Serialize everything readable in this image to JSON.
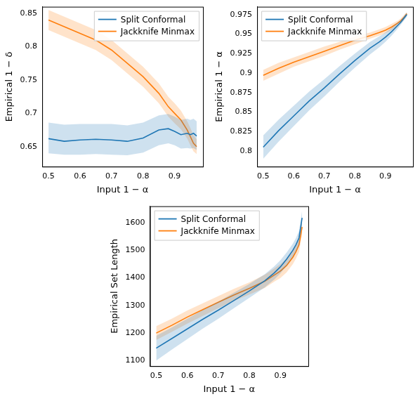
{
  "chart_data": [
    {
      "type": "line",
      "x_label": "Input 1 − α",
      "y_label": "Empirical 1 − δ",
      "x": [
        0.5,
        0.55,
        0.6,
        0.65,
        0.7,
        0.75,
        0.8,
        0.85,
        0.88,
        0.9,
        0.92,
        0.94,
        0.95,
        0.96,
        0.97
      ],
      "xlim": [
        0.48,
        0.99
      ],
      "xticks": [
        0.5,
        0.6,
        0.7,
        0.8,
        0.9
      ],
      "ylim": [
        0.62,
        0.86
      ],
      "yticks": [
        0.65,
        0.7,
        0.75,
        0.8,
        0.85
      ],
      "grid": false,
      "legend": "upper right",
      "series": [
        {
          "name": "Split Conformal",
          "color": "#1f77b4",
          "values": [
            0.662,
            0.658,
            0.66,
            0.661,
            0.66,
            0.658,
            0.663,
            0.675,
            0.677,
            0.673,
            0.668,
            0.67,
            0.668,
            0.67,
            0.666
          ],
          "lower": [
            0.64,
            0.638,
            0.638,
            0.639,
            0.638,
            0.637,
            0.641,
            0.652,
            0.655,
            0.652,
            0.647,
            0.648,
            0.647,
            0.648,
            0.645
          ],
          "upper": [
            0.686,
            0.683,
            0.684,
            0.684,
            0.684,
            0.682,
            0.686,
            0.697,
            0.699,
            0.695,
            0.69,
            0.692,
            0.69,
            0.692,
            0.688
          ]
        },
        {
          "name": "Jackknife Minmax",
          "color": "#ff7f0e",
          "values": [
            0.84,
            0.83,
            0.82,
            0.81,
            0.795,
            0.775,
            0.755,
            0.73,
            0.71,
            0.7,
            0.69,
            0.675,
            0.665,
            0.655,
            0.65
          ],
          "lower": [
            0.825,
            0.815,
            0.805,
            0.795,
            0.78,
            0.76,
            0.74,
            0.715,
            0.695,
            0.685,
            0.676,
            0.662,
            0.652,
            0.643,
            0.639
          ],
          "upper": [
            0.855,
            0.845,
            0.835,
            0.825,
            0.81,
            0.79,
            0.77,
            0.745,
            0.725,
            0.715,
            0.704,
            0.688,
            0.678,
            0.667,
            0.661
          ]
        }
      ]
    },
    {
      "type": "line",
      "x_label": "Input 1 − α",
      "y_label": "Empirical 1 − α",
      "x": [
        0.5,
        0.55,
        0.6,
        0.65,
        0.7,
        0.75,
        0.8,
        0.85,
        0.88,
        0.9,
        0.92,
        0.94,
        0.95,
        0.96,
        0.97
      ],
      "xlim": [
        0.48,
        0.99
      ],
      "xticks": [
        0.5,
        0.6,
        0.7,
        0.8,
        0.9
      ],
      "ylim": [
        0.78,
        0.985
      ],
      "yticks": [
        0.8,
        0.825,
        0.85,
        0.875,
        0.9,
        0.925,
        0.95,
        0.975
      ],
      "grid": false,
      "legend": "upper left",
      "series": [
        {
          "name": "Split Conformal",
          "color": "#1f77b4",
          "values": [
            0.805,
            0.826,
            0.845,
            0.864,
            0.881,
            0.899,
            0.916,
            0.932,
            0.94,
            0.946,
            0.953,
            0.961,
            0.965,
            0.97,
            0.975
          ],
          "lower": [
            0.79,
            0.812,
            0.832,
            0.852,
            0.87,
            0.889,
            0.907,
            0.924,
            0.933,
            0.94,
            0.948,
            0.957,
            0.962,
            0.967,
            0.972
          ],
          "upper": [
            0.82,
            0.84,
            0.858,
            0.876,
            0.892,
            0.909,
            0.925,
            0.94,
            0.947,
            0.952,
            0.958,
            0.965,
            0.968,
            0.973,
            0.978
          ]
        },
        {
          "name": "Jackknife Minmax",
          "color": "#ff7f0e",
          "values": [
            0.897,
            0.906,
            0.914,
            0.921,
            0.928,
            0.935,
            0.942,
            0.948,
            0.952,
            0.955,
            0.959,
            0.964,
            0.967,
            0.971,
            0.976
          ],
          "lower": [
            0.89,
            0.899,
            0.908,
            0.915,
            0.922,
            0.93,
            0.937,
            0.944,
            0.948,
            0.951,
            0.955,
            0.961,
            0.964,
            0.968,
            0.974
          ],
          "upper": [
            0.904,
            0.913,
            0.92,
            0.927,
            0.934,
            0.94,
            0.947,
            0.952,
            0.956,
            0.959,
            0.963,
            0.967,
            0.97,
            0.974,
            0.978
          ]
        }
      ]
    },
    {
      "type": "line",
      "x_label": "Input 1 − α",
      "y_label": "Empirical Set Length",
      "x": [
        0.5,
        0.55,
        0.6,
        0.65,
        0.7,
        0.75,
        0.8,
        0.85,
        0.88,
        0.9,
        0.92,
        0.94,
        0.95,
        0.96,
        0.97
      ],
      "xlim": [
        0.48,
        0.99
      ],
      "xticks": [
        0.5,
        0.6,
        0.7,
        0.8,
        0.9
      ],
      "ylim": [
        1080,
        1660
      ],
      "yticks": [
        1100,
        1200,
        1300,
        1400,
        1500,
        1600
      ],
      "grid": false,
      "legend": "upper left",
      "series": [
        {
          "name": "Split Conformal",
          "color": "#1f77b4",
          "values": [
            1145,
            1180,
            1215,
            1250,
            1283,
            1318,
            1353,
            1390,
            1418,
            1440,
            1468,
            1500,
            1520,
            1545,
            1618
          ],
          "lower": [
            1100,
            1140,
            1178,
            1216,
            1252,
            1290,
            1328,
            1366,
            1394,
            1416,
            1444,
            1476,
            1496,
            1520,
            1592
          ],
          "upper": [
            1190,
            1220,
            1252,
            1284,
            1314,
            1346,
            1378,
            1414,
            1442,
            1464,
            1492,
            1524,
            1544,
            1570,
            1644
          ]
        },
        {
          "name": "Jackknife Minmax",
          "color": "#ff7f0e",
          "values": [
            1200,
            1228,
            1258,
            1285,
            1312,
            1338,
            1362,
            1388,
            1410,
            1425,
            1445,
            1475,
            1495,
            1520,
            1585
          ],
          "lower": [
            1175,
            1204,
            1234,
            1262,
            1290,
            1316,
            1340,
            1364,
            1386,
            1400,
            1420,
            1450,
            1470,
            1494,
            1560
          ],
          "upper": [
            1225,
            1252,
            1282,
            1308,
            1334,
            1360,
            1384,
            1412,
            1434,
            1450,
            1470,
            1500,
            1520,
            1546,
            1610
          ]
        }
      ]
    }
  ]
}
